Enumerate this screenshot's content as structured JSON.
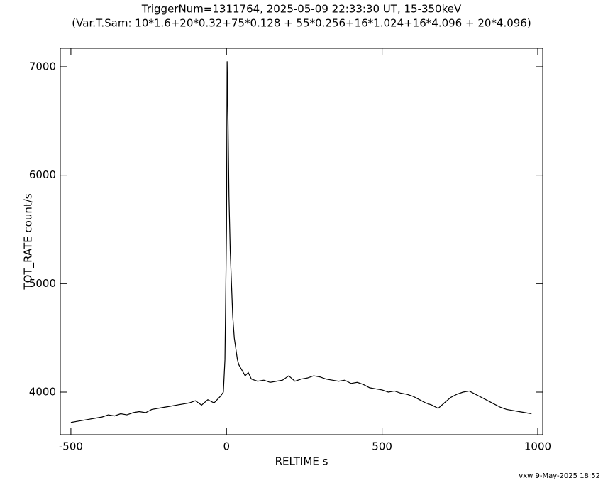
{
  "chart_data": {
    "type": "line",
    "title": "TriggerNum=1311764, 2025-05-09 22:33:30 UT, 15-350keV",
    "subtitle": "(Var.T.Sam: 10*1.6+20*0.32+75*0.128  +  55*0.256+16*1.024+16*4.096  +  20*4.096)",
    "x_label": "RELTIME  s",
    "y_label": "TOT_RATE  count/s",
    "footer": "vxw  9-May-2025 18:52",
    "color": "#000000",
    "x": [
      -500,
      -480,
      -460,
      -440,
      -420,
      -400,
      -380,
      -360,
      -340,
      -320,
      -300,
      -280,
      -260,
      -240,
      -220,
      -200,
      -180,
      -160,
      -140,
      -120,
      -100,
      -80,
      -60,
      -40,
      -20,
      -10,
      -5,
      0,
      2,
      5,
      8,
      12,
      16,
      20,
      25,
      30,
      35,
      40,
      50,
      60,
      70,
      80,
      100,
      120,
      140,
      160,
      180,
      200,
      220,
      240,
      260,
      280,
      300,
      320,
      340,
      360,
      380,
      400,
      420,
      440,
      460,
      480,
      500,
      520,
      540,
      560,
      580,
      600,
      620,
      640,
      660,
      680,
      700,
      720,
      740,
      760,
      780,
      800,
      820,
      840,
      860,
      880,
      900,
      920,
      940,
      960,
      980
    ],
    "values": [
      3720,
      3730,
      3740,
      3750,
      3760,
      3770,
      3790,
      3780,
      3800,
      3790,
      3810,
      3820,
      3810,
      3840,
      3850,
      3860,
      3870,
      3880,
      3890,
      3900,
      3920,
      3880,
      3930,
      3900,
      3960,
      4000,
      4300,
      5500,
      7050,
      6500,
      5800,
      5300,
      5000,
      4700,
      4500,
      4400,
      4300,
      4250,
      4200,
      4150,
      4180,
      4120,
      4100,
      4110,
      4090,
      4100,
      4110,
      4150,
      4100,
      4120,
      4130,
      4150,
      4140,
      4120,
      4110,
      4100,
      4110,
      4080,
      4090,
      4070,
      4040,
      4030,
      4020,
      4000,
      4010,
      3990,
      3980,
      3960,
      3930,
      3900,
      3880,
      3850,
      3900,
      3950,
      3980,
      4000,
      4010,
      3980,
      3950,
      3920,
      3890,
      3860,
      3840,
      3830,
      3820,
      3810,
      3800
    ],
    "xlim": [
      -534,
      1016
    ],
    "ylim": [
      3607,
      7170
    ],
    "xticks": [
      -500,
      0,
      500,
      1000
    ],
    "yticks": [
      4000,
      5000,
      6000,
      7000
    ]
  }
}
